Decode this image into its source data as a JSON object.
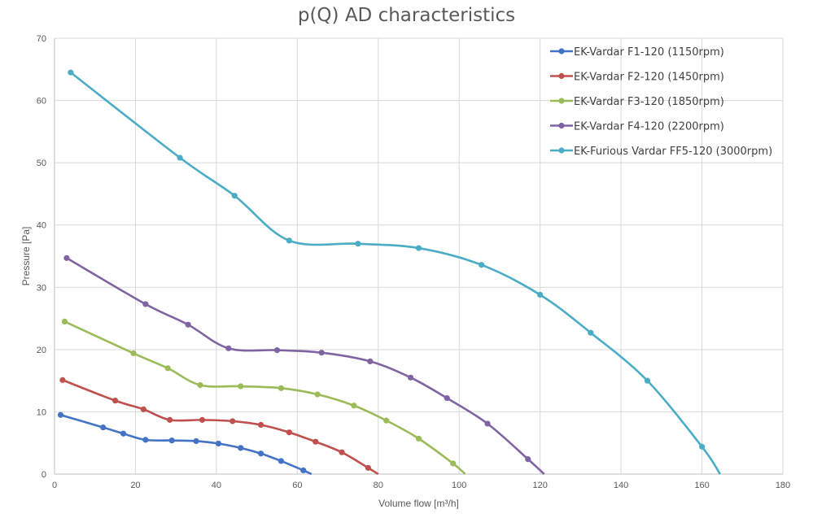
{
  "chart_data": {
    "type": "line",
    "title": "p(Q) AD characteristics",
    "xlabel": "Volume flow [m³/h]",
    "ylabel": "Pressure  [Pa]",
    "xlim": [
      0,
      180
    ],
    "ylim": [
      0,
      70
    ],
    "xticks": [
      0,
      20,
      40,
      60,
      80,
      100,
      120,
      140,
      160,
      180
    ],
    "yticks": [
      0,
      10,
      20,
      30,
      40,
      50,
      60,
      70
    ],
    "grid": true,
    "legend_position": "top-right",
    "series": [
      {
        "name": "EK-Vardar F1-120 (1150rpm)",
        "color": "#4472C4",
        "x": [
          1.5,
          12,
          17,
          22.5,
          29,
          35,
          40.5,
          46,
          51,
          56,
          61.5,
          63.5
        ],
        "y": [
          9.5,
          7.5,
          6.5,
          5.5,
          5.4,
          5.3,
          4.9,
          4.2,
          3.3,
          2.1,
          0.6,
          0
        ]
      },
      {
        "name": "EK-Vardar F2-120 (1450rpm)",
        "color": "#C0504D",
        "x": [
          2,
          15,
          22,
          28.5,
          36.5,
          44,
          51,
          58,
          64.5,
          71,
          77.5,
          80
        ],
        "y": [
          15.1,
          11.8,
          10.4,
          8.7,
          8.7,
          8.5,
          7.9,
          6.7,
          5.2,
          3.5,
          1.0,
          0
        ]
      },
      {
        "name": "EK-Vardar F3-120 (1850rpm)",
        "color": "#9BBB59",
        "x": [
          2.5,
          19.5,
          28,
          36,
          46,
          56,
          65,
          74,
          82,
          90,
          98.5,
          101.5
        ],
        "y": [
          24.5,
          19.4,
          17.0,
          14.3,
          14.1,
          13.8,
          12.8,
          11.0,
          8.6,
          5.7,
          1.7,
          0
        ]
      },
      {
        "name": "EK-Vardar F4-120 (2200rpm)",
        "color": "#8064A2",
        "x": [
          3,
          22.5,
          33,
          43,
          55,
          66,
          78,
          88,
          97,
          107,
          117,
          121
        ],
        "y": [
          34.7,
          27.3,
          24.0,
          20.2,
          19.9,
          19.5,
          18.1,
          15.5,
          12.2,
          8.1,
          2.4,
          0
        ]
      },
      {
        "name": "EK-Furious Vardar FF5-120 (3000rpm)",
        "color": "#4BACC6",
        "x": [
          4,
          31,
          44.5,
          58,
          75,
          90,
          105.5,
          120,
          132.5,
          146.5,
          160,
          164.5
        ],
        "y": [
          64.5,
          50.8,
          44.7,
          37.5,
          37.0,
          36.3,
          33.6,
          28.8,
          22.7,
          15.0,
          4.4,
          0
        ]
      }
    ]
  }
}
